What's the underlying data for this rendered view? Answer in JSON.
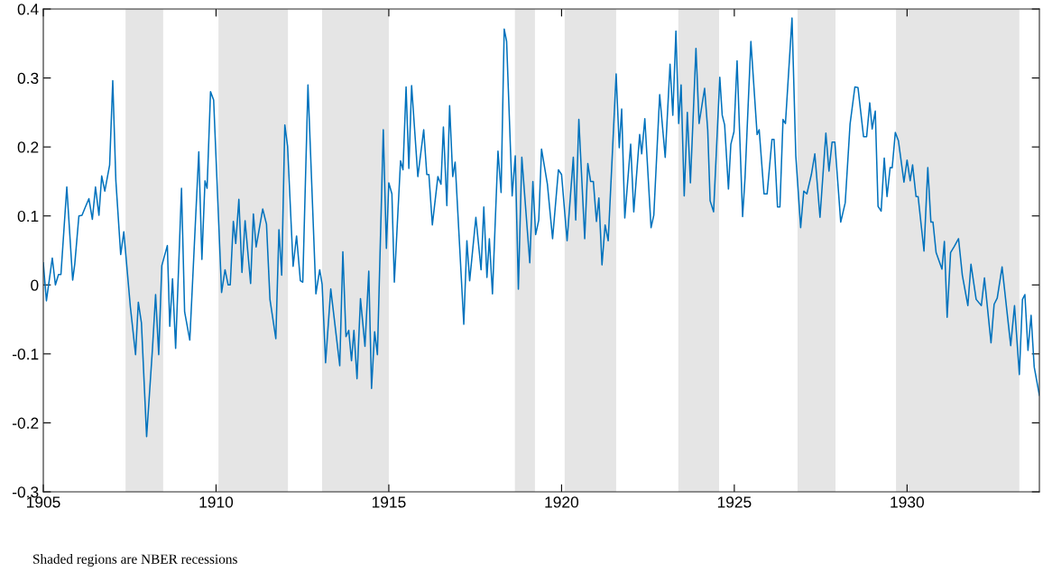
{
  "chart_data": {
    "type": "line",
    "xlim": [
      1905,
      1933.83
    ],
    "ylim": [
      -0.3,
      0.4
    ],
    "xticks": [
      1905,
      1910,
      1915,
      1920,
      1925,
      1930
    ],
    "yticks": [
      -0.3,
      -0.2,
      -0.1,
      0,
      0.1,
      0.2,
      0.3,
      0.4
    ],
    "grid": false,
    "annotations": [
      "Shaded regions are NBER recessions"
    ],
    "bands": [
      {
        "axis": "x",
        "from": 1907.38,
        "to": 1908.47,
        "color": "#e5e5e5"
      },
      {
        "axis": "x",
        "from": 1910.07,
        "to": 1912.08,
        "color": "#e5e5e5"
      },
      {
        "axis": "x",
        "from": 1913.07,
        "to": 1915.0,
        "color": "#e5e5e5"
      },
      {
        "axis": "x",
        "from": 1918.65,
        "to": 1919.23,
        "color": "#e5e5e5"
      },
      {
        "axis": "x",
        "from": 1920.09,
        "to": 1921.58,
        "color": "#e5e5e5"
      },
      {
        "axis": "x",
        "from": 1923.38,
        "to": 1924.56,
        "color": "#e5e5e5"
      },
      {
        "axis": "x",
        "from": 1926.83,
        "to": 1927.93,
        "color": "#e5e5e5"
      },
      {
        "axis": "x",
        "from": 1929.68,
        "to": 1933.25,
        "color": "#e5e5e5"
      }
    ],
    "series": [
      {
        "color": "#0072bd",
        "x": [
          1905.0,
          1905.09,
          1905.26,
          1905.35,
          1905.44,
          1905.51,
          1905.68,
          1905.85,
          1905.91,
          1906.03,
          1906.12,
          1906.21,
          1906.32,
          1906.42,
          1906.51,
          1906.61,
          1906.69,
          1906.78,
          1906.92,
          1907.01,
          1907.1,
          1907.24,
          1907.33,
          1907.52,
          1907.67,
          1907.75,
          1907.84,
          1907.99,
          1908.16,
          1908.25,
          1908.34,
          1908.43,
          1908.59,
          1908.66,
          1908.74,
          1908.83,
          1909.0,
          1909.09,
          1909.24,
          1909.5,
          1909.59,
          1909.68,
          1909.74,
          1909.84,
          1909.93,
          1910.16,
          1910.26,
          1910.35,
          1910.41,
          1910.5,
          1910.57,
          1910.66,
          1910.75,
          1910.84,
          1911.0,
          1911.08,
          1911.16,
          1911.35,
          1911.46,
          1911.56,
          1911.73,
          1911.82,
          1911.9,
          1911.99,
          1912.07,
          1912.23,
          1912.33,
          1912.44,
          1912.51,
          1912.66,
          1912.89,
          1913.0,
          1913.07,
          1913.17,
          1913.32,
          1913.58,
          1913.67,
          1913.76,
          1913.84,
          1913.92,
          1913.99,
          1914.08,
          1914.18,
          1914.31,
          1914.42,
          1914.5,
          1914.59,
          1914.67,
          1914.84,
          1914.93,
          1915.0,
          1915.09,
          1915.16,
          1915.34,
          1915.41,
          1915.5,
          1915.58,
          1915.66,
          1915.84,
          1916.01,
          1916.1,
          1916.16,
          1916.26,
          1916.42,
          1916.51,
          1916.58,
          1916.68,
          1916.76,
          1916.85,
          1916.92,
          1917.17,
          1917.26,
          1917.34,
          1917.52,
          1917.67,
          1917.75,
          1917.84,
          1917.91,
          1918.0,
          1918.16,
          1918.25,
          1918.34,
          1918.41,
          1918.57,
          1918.66,
          1918.75,
          1918.85,
          1919.08,
          1919.17,
          1919.25,
          1919.34,
          1919.42,
          1919.59,
          1919.74,
          1919.91,
          1920.0,
          1920.16,
          1920.34,
          1920.41,
          1920.5,
          1920.67,
          1920.76,
          1920.84,
          1920.92,
          1921.01,
          1921.08,
          1921.17,
          1921.26,
          1921.35,
          1921.58,
          1921.67,
          1921.74,
          1921.83,
          1922.0,
          1922.09,
          1922.26,
          1922.32,
          1922.41,
          1922.59,
          1922.67,
          1922.84,
          1923.0,
          1923.14,
          1923.22,
          1923.31,
          1923.39,
          1923.46,
          1923.55,
          1923.64,
          1923.73,
          1923.89,
          1923.98,
          1924.14,
          1924.23,
          1924.3,
          1924.4,
          1924.58,
          1924.65,
          1924.72,
          1924.83,
          1924.9,
          1924.99,
          1925.08,
          1925.24,
          1925.31,
          1925.48,
          1925.66,
          1925.72,
          1925.86,
          1925.95,
          1926.09,
          1926.15,
          1926.25,
          1926.32,
          1926.41,
          1926.48,
          1926.67,
          1926.78,
          1926.92,
          1927.01,
          1927.1,
          1927.23,
          1927.33,
          1927.48,
          1927.65,
          1927.74,
          1927.83,
          1927.91,
          1928.08,
          1928.21,
          1928.35,
          1928.49,
          1928.58,
          1928.74,
          1928.83,
          1928.92,
          1928.99,
          1929.08,
          1929.16,
          1929.25,
          1929.34,
          1929.42,
          1929.51,
          1929.57,
          1929.66,
          1929.75,
          1929.91,
          1930.0,
          1930.09,
          1930.16,
          1930.26,
          1930.32,
          1930.49,
          1930.6,
          1930.69,
          1930.75,
          1930.84,
          1931.01,
          1931.08,
          1931.16,
          1931.26,
          1931.37,
          1931.49,
          1931.6,
          1931.76,
          1931.85,
          1932.0,
          1932.15,
          1932.24,
          1932.43,
          1932.52,
          1932.61,
          1932.75,
          1933.0,
          1933.11,
          1933.25,
          1933.34,
          1933.41,
          1933.5,
          1933.59,
          1933.68,
          1933.83
        ],
        "values": [
          0.032,
          -0.023,
          0.039,
          0.0,
          0.015,
          0.015,
          0.142,
          0.007,
          0.03,
          0.1,
          0.101,
          0.112,
          0.125,
          0.095,
          0.142,
          0.101,
          0.158,
          0.136,
          0.174,
          0.296,
          0.151,
          0.044,
          0.077,
          -0.032,
          -0.101,
          -0.025,
          -0.055,
          -0.22,
          -0.092,
          -0.014,
          -0.101,
          0.028,
          0.057,
          -0.06,
          0.009,
          -0.092,
          0.14,
          -0.039,
          -0.08,
          0.193,
          0.037,
          0.151,
          0.14,
          0.28,
          0.268,
          -0.011,
          0.022,
          0.0,
          0.0,
          0.092,
          0.06,
          0.124,
          0.018,
          0.093,
          0.002,
          0.103,
          0.055,
          0.11,
          0.088,
          -0.021,
          -0.078,
          0.08,
          0.014,
          0.232,
          0.201,
          0.027,
          0.071,
          0.006,
          0.004,
          0.29,
          -0.013,
          0.022,
          0.001,
          -0.113,
          -0.006,
          -0.117,
          0.048,
          -0.075,
          -0.066,
          -0.11,
          -0.066,
          -0.136,
          -0.02,
          -0.089,
          0.02,
          -0.15,
          -0.068,
          -0.101,
          0.225,
          0.053,
          0.148,
          0.132,
          0.004,
          0.18,
          0.167,
          0.287,
          0.169,
          0.289,
          0.157,
          0.225,
          0.16,
          0.16,
          0.087,
          0.157,
          0.146,
          0.229,
          0.115,
          0.26,
          0.157,
          0.178,
          -0.057,
          0.064,
          0.006,
          0.098,
          0.022,
          0.113,
          0.011,
          0.067,
          -0.013,
          0.194,
          0.134,
          0.371,
          0.353,
          0.129,
          0.187,
          -0.006,
          0.185,
          0.032,
          0.15,
          0.073,
          0.094,
          0.197,
          0.146,
          0.067,
          0.167,
          0.16,
          0.064,
          0.185,
          0.094,
          0.24,
          0.067,
          0.176,
          0.15,
          0.15,
          0.092,
          0.126,
          0.029,
          0.087,
          0.064,
          0.306,
          0.199,
          0.255,
          0.097,
          0.204,
          0.106,
          0.218,
          0.19,
          0.241,
          0.083,
          0.101,
          0.276,
          0.185,
          0.32,
          0.246,
          0.368,
          0.234,
          0.29,
          0.129,
          0.25,
          0.148,
          0.343,
          0.234,
          0.285,
          0.225,
          0.122,
          0.106,
          0.301,
          0.246,
          0.232,
          0.139,
          0.204,
          0.222,
          0.325,
          0.099,
          0.155,
          0.353,
          0.218,
          0.225,
          0.132,
          0.132,
          0.211,
          0.211,
          0.113,
          0.113,
          0.24,
          0.234,
          0.387,
          0.187,
          0.083,
          0.136,
          0.132,
          0.16,
          0.19,
          0.098,
          0.22,
          0.165,
          0.207,
          0.207,
          0.091,
          0.119,
          0.233,
          0.287,
          0.286,
          0.215,
          0.215,
          0.264,
          0.226,
          0.252,
          0.114,
          0.107,
          0.184,
          0.128,
          0.17,
          0.17,
          0.221,
          0.209,
          0.149,
          0.181,
          0.151,
          0.174,
          0.128,
          0.128,
          0.049,
          0.17,
          0.091,
          0.091,
          0.047,
          0.023,
          0.063,
          -0.047,
          0.047,
          0.056,
          0.067,
          0.014,
          -0.03,
          0.03,
          -0.021,
          -0.03,
          0.01,
          -0.084,
          -0.028,
          -0.019,
          0.026,
          -0.088,
          -0.03,
          -0.13,
          -0.021,
          -0.014,
          -0.095,
          -0.044,
          -0.119,
          -0.16
        ]
      }
    ]
  }
}
